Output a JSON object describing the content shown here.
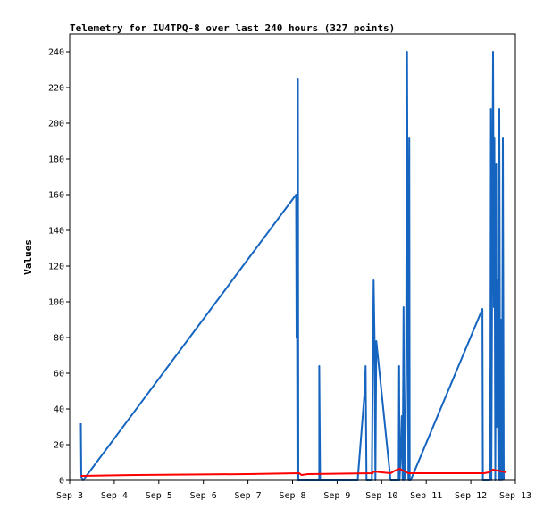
{
  "chart_data": {
    "type": "line",
    "title": "Telemetry for IU4TPQ-8 over last 240 hours (327 points)",
    "xlabel": "",
    "ylabel": "Values",
    "xlim": [
      "Sep 3",
      "Sep 13"
    ],
    "ylim": [
      0,
      250
    ],
    "grid": false,
    "legend": "none",
    "x_ticks": [
      "Sep 3",
      "Sep 4",
      "Sep 5",
      "Sep 6",
      "Sep 7",
      "Sep 8",
      "Sep 9",
      "Sep 10",
      "Sep 11",
      "Sep 12",
      "Sep 13"
    ],
    "y_ticks": [
      0,
      20,
      40,
      60,
      80,
      100,
      120,
      140,
      160,
      180,
      200,
      220,
      240
    ],
    "series": [
      {
        "color": "#1565c0",
        "points": [
          [
            3.25,
            32
          ],
          [
            3.26,
            2
          ],
          [
            3.3,
            0
          ],
          [
            8.08,
            160
          ],
          [
            8.09,
            80
          ],
          [
            8.1,
            112
          ],
          [
            8.11,
            0
          ],
          [
            8.12,
            225
          ],
          [
            8.13,
            0
          ],
          [
            8.6,
            0
          ],
          [
            8.6,
            64
          ],
          [
            8.62,
            0
          ],
          [
            9.46,
            0
          ],
          [
            9.62,
            50
          ],
          [
            9.64,
            64
          ],
          [
            9.66,
            0
          ],
          [
            9.78,
            0
          ],
          [
            9.8,
            60
          ],
          [
            9.82,
            112
          ],
          [
            9.84,
            80
          ],
          [
            9.86,
            0
          ],
          [
            9.88,
            78
          ],
          [
            10.2,
            0
          ],
          [
            10.38,
            0
          ],
          [
            10.39,
            64
          ],
          [
            10.4,
            0
          ],
          [
            10.42,
            10
          ],
          [
            10.45,
            36
          ],
          [
            10.47,
            0
          ],
          [
            10.49,
            97
          ],
          [
            10.51,
            0
          ],
          [
            10.53,
            6
          ],
          [
            10.55,
            60
          ],
          [
            10.56,
            180
          ],
          [
            10.57,
            240
          ],
          [
            10.58,
            170
          ],
          [
            10.6,
            0
          ],
          [
            10.62,
            192
          ],
          [
            10.63,
            0
          ],
          [
            10.65,
            0
          ],
          [
            12.26,
            96
          ],
          [
            12.27,
            0
          ],
          [
            12.42,
            0
          ],
          [
            12.44,
            64
          ],
          [
            12.45,
            208
          ],
          [
            12.46,
            0
          ],
          [
            12.48,
            128
          ],
          [
            12.5,
            240
          ],
          [
            12.52,
            97
          ],
          [
            12.53,
            192
          ],
          [
            12.55,
            0
          ],
          [
            12.57,
            177
          ],
          [
            12.58,
            30
          ],
          [
            12.6,
            112
          ],
          [
            12.62,
            0
          ],
          [
            12.64,
            208
          ],
          [
            12.66,
            0
          ],
          [
            12.68,
            90
          ],
          [
            12.7,
            0
          ],
          [
            12.72,
            192
          ],
          [
            12.74,
            0
          ]
        ]
      },
      {
        "color": "#ff0000",
        "points": [
          [
            3.25,
            2.5
          ],
          [
            4.5,
            3
          ],
          [
            7,
            3.5
          ],
          [
            8.15,
            4
          ],
          [
            8.2,
            3
          ],
          [
            8.35,
            3.5
          ],
          [
            9.8,
            4
          ],
          [
            9.82,
            5
          ],
          [
            10.0,
            4.5
          ],
          [
            10.2,
            4
          ],
          [
            10.3,
            5.5
          ],
          [
            10.4,
            6.5
          ],
          [
            10.6,
            4
          ],
          [
            12.3,
            4
          ],
          [
            12.4,
            4.5
          ],
          [
            12.5,
            6
          ],
          [
            12.6,
            5.5
          ],
          [
            12.8,
            4.5
          ]
        ]
      }
    ]
  }
}
